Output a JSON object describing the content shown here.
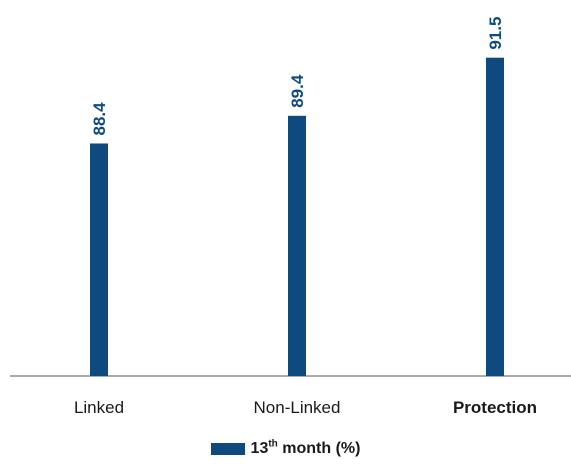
{
  "chart_data": {
    "type": "bar",
    "categories": [
      "Linked",
      "Non-Linked",
      "Protection"
    ],
    "highlighted_category": "Protection",
    "series": [
      {
        "name": "13th month (%)",
        "values": [
          88.4,
          89.4,
          91.5
        ]
      }
    ],
    "legend": {
      "base": "13",
      "sup": "th",
      "rest": " month (%)"
    },
    "colors": {
      "bar": "#0e4a7d",
      "value_label": "#0e4a7d",
      "axis": "#555555",
      "category_label": "#1a1a1a"
    },
    "ylim": [
      80,
      92.5
    ],
    "value_label_orientation": "vertical",
    "grid": false,
    "legend_position": "bottom-center"
  }
}
